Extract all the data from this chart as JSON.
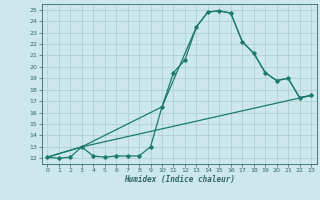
{
  "xlabel": "Humidex (Indice chaleur)",
  "bg_color": "#cce8ec",
  "grid_color": "#aacccc",
  "line_color": "#1a7a6e",
  "spine_color": "#336666",
  "xlim": [
    -0.5,
    23.5
  ],
  "ylim": [
    11.5,
    25.5
  ],
  "yticks": [
    12,
    13,
    14,
    15,
    16,
    17,
    18,
    19,
    20,
    21,
    22,
    23,
    24,
    25
  ],
  "xticks": [
    0,
    1,
    2,
    3,
    4,
    5,
    6,
    7,
    8,
    9,
    10,
    11,
    12,
    13,
    14,
    15,
    16,
    17,
    18,
    19,
    20,
    21,
    22,
    23
  ],
  "line1_x": [
    0,
    1,
    2,
    3,
    4,
    5,
    6,
    7,
    8,
    9,
    10,
    11,
    12,
    13,
    14,
    15,
    16,
    17,
    18,
    19,
    20,
    21,
    22,
    23
  ],
  "line1_y": [
    12.1,
    12.0,
    12.1,
    13.0,
    12.2,
    12.1,
    12.2,
    12.2,
    12.2,
    13.0,
    16.5,
    19.5,
    20.6,
    23.5,
    24.8,
    24.9,
    24.7,
    22.2,
    21.2,
    19.5,
    18.8,
    19.0,
    17.3,
    17.5
  ],
  "line2_x": [
    0,
    3,
    10,
    13,
    14,
    15,
    16,
    17,
    18,
    19,
    20,
    21,
    22,
    23
  ],
  "line2_y": [
    12.1,
    13.0,
    16.5,
    23.5,
    24.8,
    24.9,
    24.7,
    22.2,
    21.2,
    19.5,
    18.8,
    19.0,
    17.3,
    17.5
  ],
  "line3_x": [
    0,
    3,
    23
  ],
  "line3_y": [
    12.1,
    13.0,
    17.5
  ]
}
